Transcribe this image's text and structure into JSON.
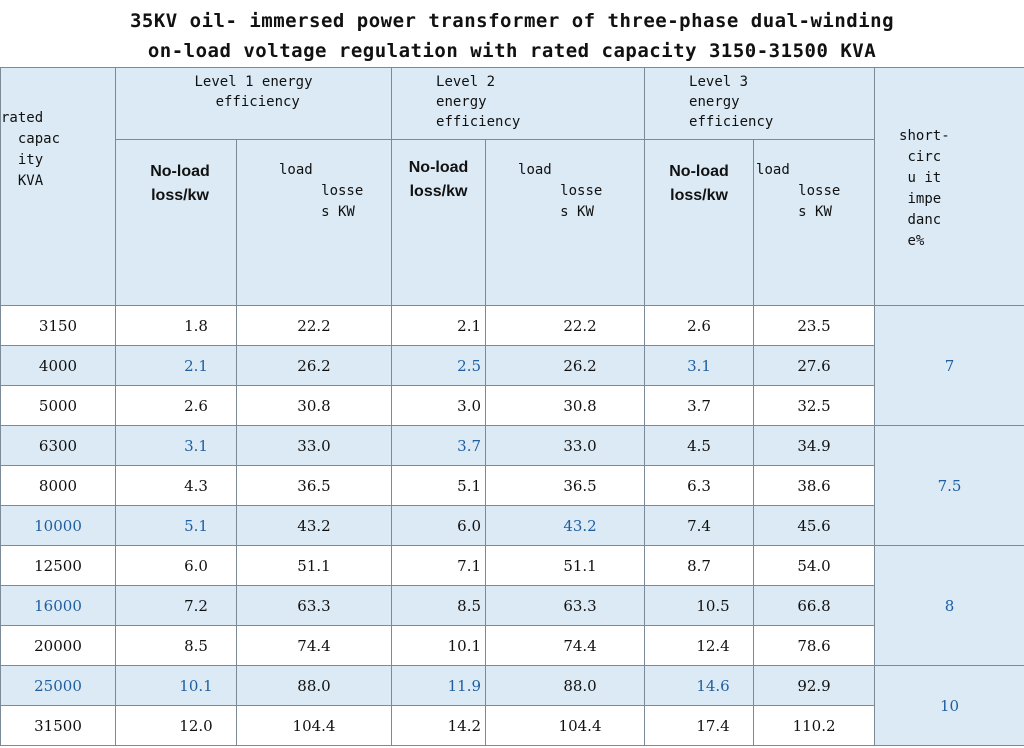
{
  "title_line1": "35KV oil- immersed power transformer of three-phase dual-winding",
  "title_line2": "on-load voltage regulation with rated capacity 3150-31500 KVA",
  "headers": {
    "rated_capacity": "rated\n  capac\n  ity\n  KVA",
    "level1": "Level 1 energy\n efficiency",
    "level2": "Level 2\nenergy\nefficiency",
    "level3": "Level 3\nenergy\nefficiency",
    "short_circuit": "short-\n circ\n u it\n impe\n danc\n e%",
    "noload": "No-load\nloss/kw",
    "load": "load\n     losse\n     s KW"
  },
  "rows": [
    {
      "cap": "3150",
      "l1n": "1.8",
      "l1l": "22.2",
      "l2n": "2.1",
      "l2l": "22.2",
      "l3n": "2.6",
      "l3l": "23.5"
    },
    {
      "cap": "4000",
      "l1n": "2.1",
      "l1l": "26.2",
      "l2n": "2.5",
      "l2l": "26.2",
      "l3n": "3.1",
      "l3l": "27.6"
    },
    {
      "cap": "5000",
      "l1n": "2.6",
      "l1l": "30.8",
      "l2n": "3.0",
      "l2l": "30.8",
      "l3n": "3.7",
      "l3l": "32.5"
    },
    {
      "cap": "6300",
      "l1n": "3.1",
      "l1l": "33.0",
      "l2n": "3.7",
      "l2l": "33.0",
      "l3n": "4.5",
      "l3l": "34.9"
    },
    {
      "cap": "8000",
      "l1n": "4.3",
      "l1l": "36.5",
      "l2n": "5.1",
      "l2l": "36.5",
      "l3n": "6.3",
      "l3l": "38.6"
    },
    {
      "cap": "10000",
      "l1n": "5.1",
      "l1l": "43.2",
      "l2n": "6.0",
      "l2l": "43.2",
      "l3n": "7.4",
      "l3l": "45.6"
    },
    {
      "cap": "12500",
      "l1n": "6.0",
      "l1l": "51.1",
      "l2n": "7.1",
      "l2l": "51.1",
      "l3n": "8.7",
      "l3l": "54.0"
    },
    {
      "cap": "16000",
      "l1n": "7.2",
      "l1l": "63.3",
      "l2n": "8.5",
      "l2l": "63.3",
      "l3n": "10.5",
      "l3l": "66.8"
    },
    {
      "cap": "20000",
      "l1n": "8.5",
      "l1l": "74.4",
      "l2n": "10.1",
      "l2l": "74.4",
      "l3n": "12.4",
      "l3l": "78.6"
    },
    {
      "cap": "25000",
      "l1n": "10.1",
      "l1l": "88.0",
      "l2n": "11.9",
      "l2l": "88.0",
      "l3n": "14.6",
      "l3l": "92.9"
    },
    {
      "cap": "31500",
      "l1n": "12.0",
      "l1l": "104.4",
      "l2n": "14.2",
      "l2l": "104.4",
      "l3n": "17.4",
      "l3l": "110.2"
    }
  ],
  "short_circuit_groups": [
    "7",
    "7.5",
    "8",
    "10"
  ],
  "colors": {
    "header_bg": "#dbeaf5",
    "accent_blue": "#1f5fa0",
    "border": "#7a8a96"
  }
}
